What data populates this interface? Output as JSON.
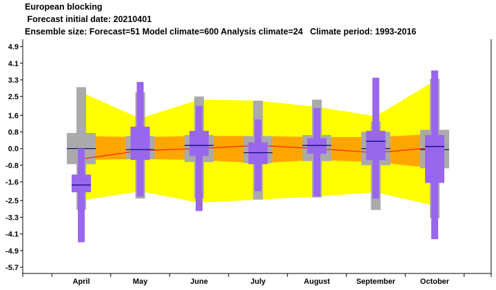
{
  "header": {
    "title": "European blocking",
    "subtitle": " Forecast initial date: 20210401",
    "info": "Ensemble size: Forecast=51 Model climate=600 Analysis climate=24   Climate period: 1993-2016"
  },
  "colors": {
    "climate_range": "#aaaaaa",
    "forecast_range": "#9966ee",
    "climate_envelope_outer": "#ffff00",
    "climate_envelope_inner": "#ffa500",
    "mean_line": "#ff2200",
    "median_tick": "#000066"
  },
  "chart_data": {
    "type": "boxplot",
    "categories": [
      "April",
      "May",
      "June",
      "July",
      "August",
      "September",
      "October"
    ],
    "yticks": [
      "4.9",
      "4.1",
      "3.3",
      "2.5",
      "1.6",
      "0.8",
      "0.0",
      "-0.8",
      "-1.6",
      "-2.5",
      "-3.3",
      "-4.1",
      "-4.9",
      "-5.7"
    ],
    "ylim": [
      -6.0,
      5.25
    ],
    "climate_envelope_outer": {
      "upper": [
        2.7,
        1.45,
        2.35,
        2.3,
        2.0,
        1.55,
        3.25
      ],
      "lower": [
        -2.5,
        -2.05,
        -2.6,
        -2.45,
        -2.3,
        -2.1,
        -2.75
      ]
    },
    "climate_envelope_inner": {
      "upper": [
        0.6,
        0.55,
        0.6,
        0.6,
        0.55,
        0.55,
        0.7
      ],
      "lower": [
        -0.55,
        -0.5,
        -0.55,
        -0.7,
        -0.55,
        -0.65,
        -0.95
      ]
    },
    "ensemble_mean": [
      -0.5,
      -0.1,
      0.0,
      0.15,
      0.0,
      -0.2,
      0.05
    ],
    "model_climate": [
      {
        "min": -2.95,
        "p25": -0.75,
        "median": 0.0,
        "p75": 0.75,
        "max": 2.95
      },
      {
        "min": -2.4,
        "p25": -0.5,
        "median": -0.05,
        "p75": 0.6,
        "max": 2.7
      },
      {
        "min": -2.4,
        "p25": -0.65,
        "median": 0.15,
        "p75": 0.65,
        "max": 2.5
      },
      {
        "min": -2.45,
        "p25": -0.7,
        "median": -0.2,
        "p75": 0.6,
        "max": 2.3
      },
      {
        "min": -2.35,
        "p25": -0.6,
        "median": 0.15,
        "p75": 0.65,
        "max": 2.35
      },
      {
        "min": -2.95,
        "p25": -0.8,
        "median": 0.0,
        "p75": 0.8,
        "max": 1.3
      },
      {
        "min": -3.35,
        "p25": -0.95,
        "median": -0.05,
        "p75": 0.9,
        "max": 3.35
      }
    ],
    "forecast": [
      {
        "min": -4.5,
        "p25": -2.1,
        "median": -1.75,
        "p75": -1.25,
        "max": 0.0
      },
      {
        "min": -2.3,
        "p25": -0.55,
        "median": -0.05,
        "p75": 1.05,
        "max": 3.2
      },
      {
        "min": -3.0,
        "p25": -0.35,
        "median": 0.15,
        "p75": 0.85,
        "max": 2.05
      },
      {
        "min": -2.05,
        "p25": -0.75,
        "median": -0.2,
        "p75": 0.3,
        "max": 1.4
      },
      {
        "min": -2.3,
        "p25": -0.25,
        "median": 0.15,
        "p75": 0.5,
        "max": 1.95
      },
      {
        "min": -2.4,
        "p25": -0.55,
        "median": 0.35,
        "p75": 0.85,
        "max": 3.4
      },
      {
        "min": -4.35,
        "p25": -1.65,
        "median": 0.1,
        "p75": 0.65,
        "max": 3.75
      }
    ]
  }
}
